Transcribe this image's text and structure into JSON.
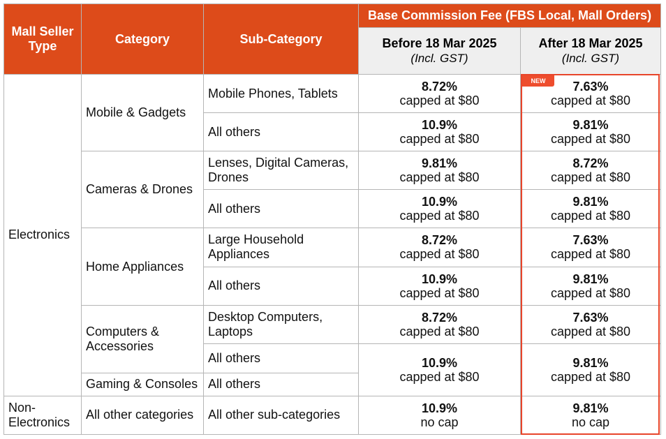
{
  "header": {
    "col1": "Mall Seller Type",
    "col2": "Category",
    "col3": "Sub-Category",
    "group": "Base Commission Fee (FBS Local, Mall Orders)",
    "before_title": "Before 18 Mar 2025",
    "before_note": "(Incl. GST)",
    "after_title": "After 18 Mar 2025",
    "after_note": "(Incl. GST)"
  },
  "badge": "NEW",
  "seller_types": [
    "Electronics",
    "Non-Electronics"
  ],
  "categories": [
    "Mobile & Gadgets",
    "Cameras & Drones",
    "Home Appliances",
    "Computers & Accessories",
    "Gaming & Consoles",
    "All other categories"
  ],
  "rows": [
    {
      "sub": "Mobile Phones, Tablets",
      "before_pct": "8.72%",
      "before_cap": "capped at $80",
      "after_pct": "7.63%",
      "after_cap": "capped at $80"
    },
    {
      "sub": "All others",
      "before_pct": "10.9%",
      "before_cap": "capped at $80",
      "after_pct": "9.81%",
      "after_cap": "capped at $80"
    },
    {
      "sub": "Lenses, Digital Cameras, Drones",
      "before_pct": "9.81%",
      "before_cap": "capped at $80",
      "after_pct": "8.72%",
      "after_cap": "capped at $80"
    },
    {
      "sub": "All others",
      "before_pct": "10.9%",
      "before_cap": "capped at $80",
      "after_pct": "9.81%",
      "after_cap": "capped at $80"
    },
    {
      "sub": "Large Household Appliances",
      "before_pct": "8.72%",
      "before_cap": "capped at $80",
      "after_pct": "7.63%",
      "after_cap": "capped at $80"
    },
    {
      "sub": "All others",
      "before_pct": "10.9%",
      "before_cap": "capped at $80",
      "after_pct": "9.81%",
      "after_cap": "capped at $80"
    },
    {
      "sub": "Desktop Computers, Laptops",
      "before_pct": "8.72%",
      "before_cap": "capped at $80",
      "after_pct": "7.63%",
      "after_cap": "capped at $80"
    },
    {
      "sub": "All others",
      "before_pct": "10.9%",
      "before_cap": "capped at $80",
      "after_pct": "9.81%",
      "after_cap": "capped at $80"
    },
    {
      "sub": "All others"
    },
    {
      "sub": "All other sub-categories",
      "before_pct": "10.9%",
      "before_cap": "no cap",
      "after_pct": "9.81%",
      "after_cap": "no cap"
    }
  ],
  "colors": {
    "header_bg": "#dd4b1a",
    "subheader_bg": "#efefef",
    "highlight_border": "#e8452a",
    "badge_bg": "#ee4d2d"
  }
}
